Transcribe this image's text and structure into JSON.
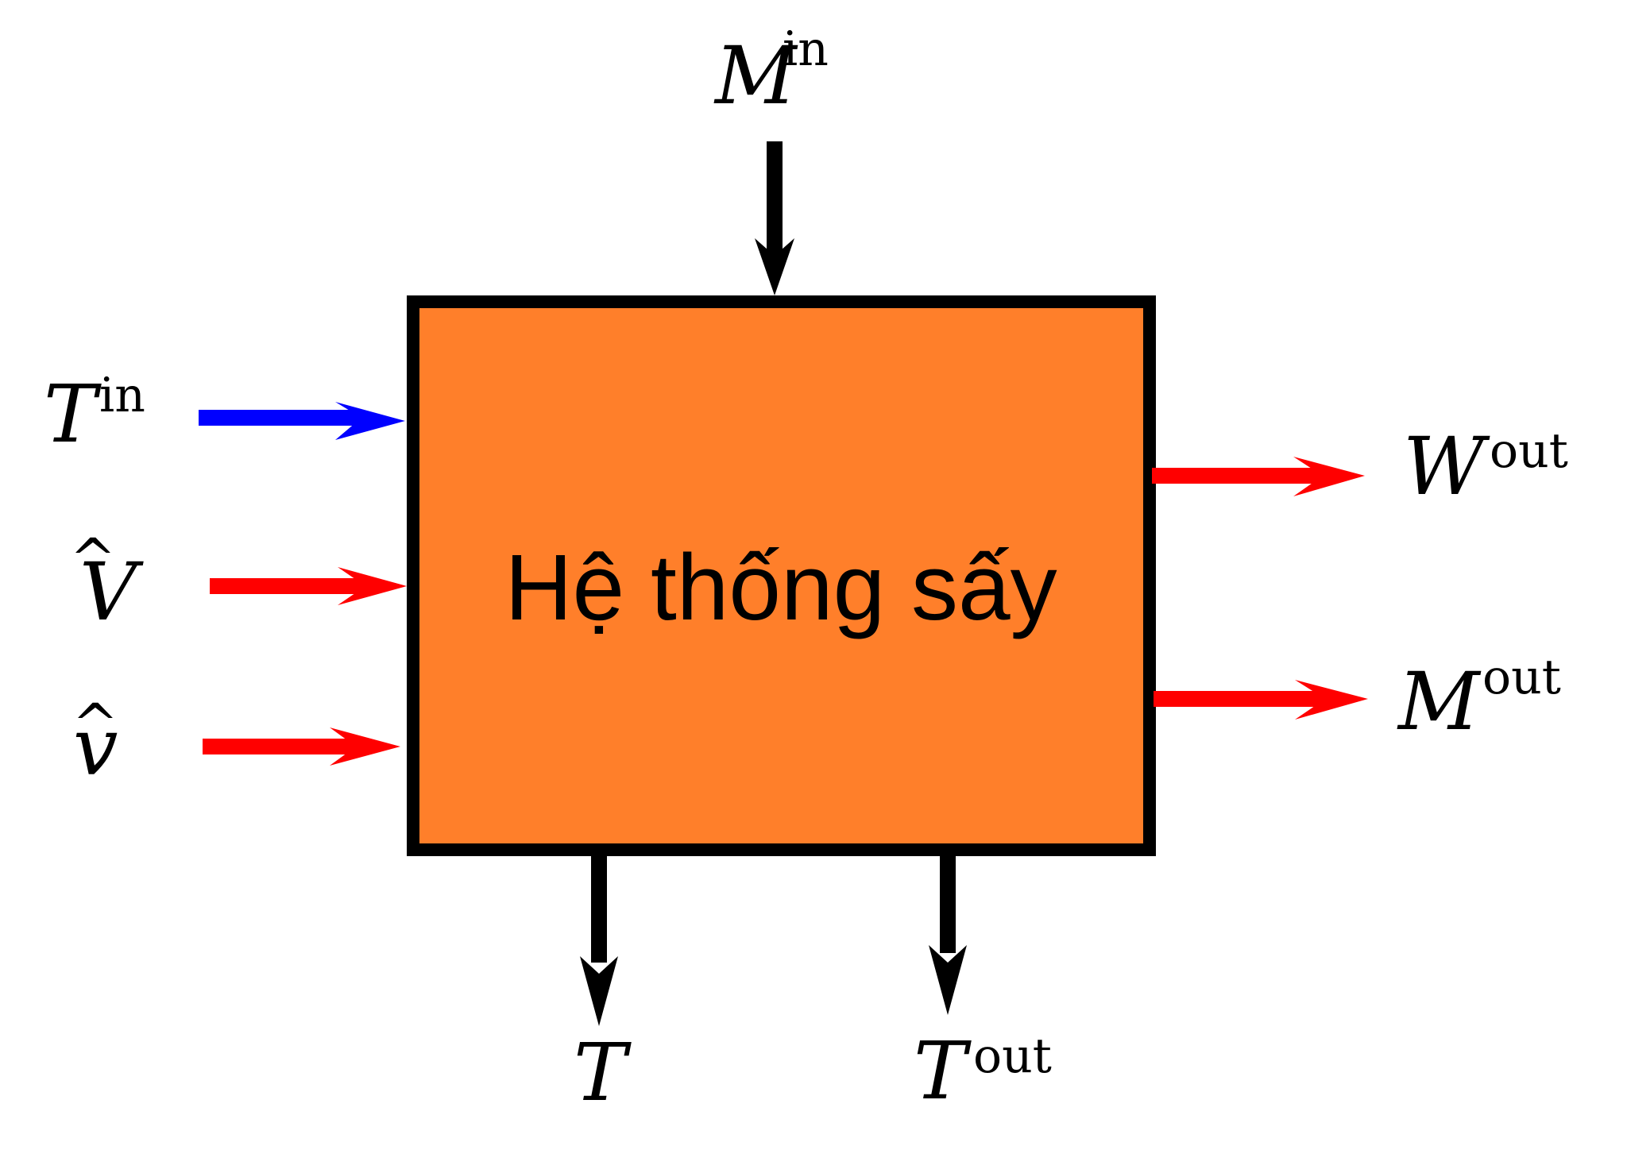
{
  "system": {
    "label": "Hệ thống sấy",
    "fill_color": "#FF7F2A",
    "border_color": "#000000"
  },
  "colors": {
    "blue_arrow": "#0000FF",
    "red_arrow": "#FF0000",
    "black_arrow": "#000000"
  },
  "inputs": {
    "top": {
      "symbol": "M",
      "superscript": "in"
    },
    "left_1": {
      "symbol": "T",
      "superscript": "in"
    },
    "left_2": {
      "symbol": "V",
      "hat": "^"
    },
    "left_3": {
      "symbol": "v",
      "hat": "^"
    }
  },
  "outputs": {
    "right_1": {
      "symbol": "W",
      "superscript": "out"
    },
    "right_2": {
      "symbol": "M",
      "superscript": "out"
    },
    "bottom_1": {
      "symbol": "T"
    },
    "bottom_2": {
      "symbol": "T",
      "superscript": "out"
    }
  }
}
